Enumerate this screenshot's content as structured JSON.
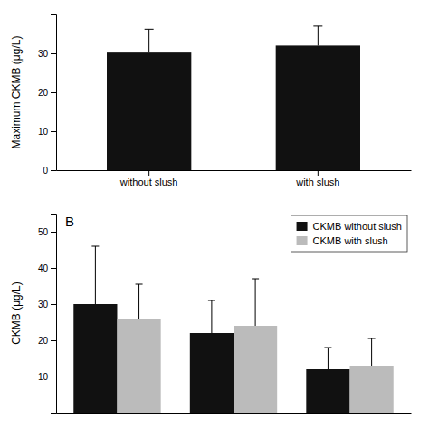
{
  "chart_data": [
    {
      "type": "bar",
      "y_label": "Maximum CKMB (μg/L)",
      "categories": [
        "without slush",
        "with slush"
      ],
      "values": [
        30.2,
        32.0
      ],
      "errors": [
        6.0,
        5.0
      ],
      "color": "#111111",
      "ylim": [
        0,
        40
      ],
      "yticks": [
        0,
        10,
        20,
        30
      ],
      "grid": false
    },
    {
      "type": "bar",
      "y_label": "CKMB (μg/L)",
      "categories": [
        null,
        null,
        null
      ],
      "series": [
        {
          "name": "CKMB without slush",
          "color": "#111111",
          "values": [
            30.0,
            22.0,
            12.0
          ],
          "errors": [
            16.0,
            9.0,
            6.0
          ]
        },
        {
          "name": "CKMB with slush",
          "color": "#bbbbbb",
          "values": [
            26.0,
            24.0,
            13.0
          ],
          "errors": [
            9.5,
            13.0,
            7.5
          ]
        }
      ],
      "ylim": [
        0,
        55
      ],
      "yticks": [
        10,
        20,
        30,
        40,
        50
      ],
      "tick_labels": "y",
      "legend": "upper-right",
      "annotations": [
        "B"
      ],
      "grid": false
    }
  ]
}
